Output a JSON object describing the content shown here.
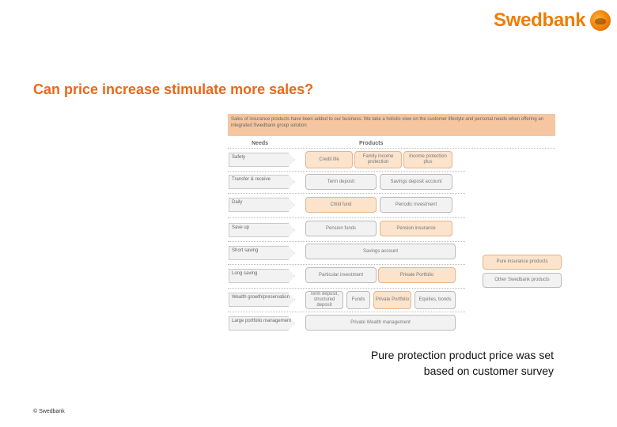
{
  "header": {
    "logo_text": "Swedbank",
    "title": "Can price increase stimulate more sales?"
  },
  "slide": {
    "banner_text": "Sales of insurance products have been added to our business. We take a holistic view on the customer lifestyle and personal needs when offering an integrated Swedbank group solution",
    "needs_header": "Needs",
    "products_header": "Products",
    "needs": [
      "Safety",
      "Transfer & receive",
      "Daily",
      "Save up",
      "Short saving",
      "Long saving",
      "Wealth growth/preservation",
      "Large portfolio management"
    ],
    "rows": [
      [
        {
          "label": "Credit life",
          "style": "orange"
        },
        {
          "label": "Family income protection",
          "style": "orange"
        },
        {
          "label": "Income protection plus",
          "style": "orange"
        }
      ],
      [
        {
          "label": "Term deposit",
          "style": "grey"
        },
        {
          "label": "Savings deposit account",
          "style": "grey"
        }
      ],
      [
        {
          "label": "Child fund",
          "style": "orange"
        },
        {
          "label": "Periodic investment",
          "style": "grey"
        }
      ],
      [
        {
          "label": "Pension funds",
          "style": "grey"
        },
        {
          "label": "Pension insurance",
          "style": "orange"
        }
      ],
      [
        {
          "label": "Savings account",
          "style": "grey"
        }
      ],
      [
        {
          "label": "Particular investment",
          "style": "grey"
        },
        {
          "label": "Private Portfolio",
          "style": "orange"
        }
      ],
      [
        {
          "label": "Term deposit, structured deposit",
          "style": "grey"
        },
        {
          "label": "Funds",
          "style": "grey"
        },
        {
          "label": "Private Portfolio",
          "style": "orange"
        },
        {
          "label": "Equities, bonds",
          "style": "grey"
        }
      ],
      [
        {
          "label": "Private Wealth management",
          "style": "grey"
        }
      ]
    ],
    "side_boxes": [
      {
        "label": "Pure insurance products",
        "style": "orange"
      },
      {
        "label": "Other Swedbank products",
        "style": "grey"
      }
    ]
  },
  "caption": {
    "line1": "Pure protection product price was set",
    "line2": "based on customer survey"
  },
  "footer": {
    "copyright": "© Swedbank"
  }
}
